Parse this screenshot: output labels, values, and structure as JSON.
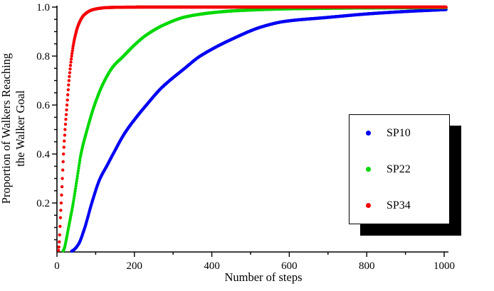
{
  "chart_data": {
    "type": "scatter",
    "title": "",
    "xlabel": "Number of steps",
    "ylabel": "Proportion of Walkers Reaching the Walker Goal",
    "ylabel_lines": [
      "Proportion of Walkers Reaching",
      "the Walker Goal"
    ],
    "xlim": [
      0,
      1010
    ],
    "ylim": [
      0,
      1.0
    ],
    "grid": false,
    "axis_color": "#000000",
    "x_axis": {
      "major_ticks": [
        0,
        200,
        400,
        600,
        800,
        1000
      ],
      "minor_ticks": [
        100,
        300,
        500,
        700,
        900
      ],
      "tick_labels": [
        "0",
        "200",
        "400",
        "600",
        "800",
        "1000"
      ]
    },
    "y_axis": {
      "major_ticks": [
        0.2,
        0.4,
        0.6,
        0.8,
        1.0
      ],
      "minor_step": 0.05,
      "tick_labels": [
        "0.2",
        "0.4",
        "0.6",
        "0.8",
        "1.0"
      ]
    },
    "legend": {
      "position": "center-right",
      "style": "white box with black drop shadow",
      "items": [
        "SP10",
        "SP22",
        "SP34"
      ]
    },
    "series": [
      {
        "name": "SP10",
        "color": "#0000f2",
        "marker": "dot",
        "points": [
          [
            0,
            0
          ],
          [
            30,
            0
          ],
          [
            40,
            0.005
          ],
          [
            55,
            0.03
          ],
          [
            70,
            0.09
          ],
          [
            90,
            0.2
          ],
          [
            110,
            0.295
          ],
          [
            130,
            0.355
          ],
          [
            145,
            0.4
          ],
          [
            175,
            0.485
          ],
          [
            205,
            0.55
          ],
          [
            231,
            0.6
          ],
          [
            270,
            0.67
          ],
          [
            330,
            0.75
          ],
          [
            370,
            0.8
          ],
          [
            460,
            0.875
          ],
          [
            530,
            0.92
          ],
          [
            590,
            0.942
          ],
          [
            700,
            0.958
          ],
          [
            800,
            0.972
          ],
          [
            900,
            0.982
          ],
          [
            1005,
            0.99
          ]
        ]
      },
      {
        "name": "SP22",
        "color": "#00d800",
        "marker": "dot",
        "points": [
          [
            0,
            0
          ],
          [
            12,
            0
          ],
          [
            18,
            0.01
          ],
          [
            24,
            0.05
          ],
          [
            30,
            0.1
          ],
          [
            42,
            0.2
          ],
          [
            52,
            0.3
          ],
          [
            62,
            0.4
          ],
          [
            78,
            0.5
          ],
          [
            97,
            0.6
          ],
          [
            120,
            0.69
          ],
          [
            145,
            0.757
          ],
          [
            172,
            0.8
          ],
          [
            200,
            0.845
          ],
          [
            230,
            0.885
          ],
          [
            277,
            0.928
          ],
          [
            332,
            0.96
          ],
          [
            400,
            0.977
          ],
          [
            460,
            0.985
          ],
          [
            600,
            0.993
          ],
          [
            800,
            0.9965
          ],
          [
            1005,
            0.998
          ]
        ]
      },
      {
        "name": "SP34",
        "color": "#f50000",
        "marker": "dot",
        "points": [
          [
            0,
            0
          ],
          [
            3,
            0
          ],
          [
            5,
            0.02
          ],
          [
            7,
            0.07
          ],
          [
            9,
            0.14
          ],
          [
            11,
            0.2
          ],
          [
            14,
            0.3
          ],
          [
            17,
            0.4
          ],
          [
            21,
            0.5
          ],
          [
            26,
            0.6
          ],
          [
            31,
            0.7
          ],
          [
            38,
            0.8
          ],
          [
            46,
            0.875
          ],
          [
            56,
            0.93
          ],
          [
            70,
            0.968
          ],
          [
            90,
            0.988
          ],
          [
            110,
            0.995
          ],
          [
            130,
            0.998
          ],
          [
            170,
            0.9995
          ],
          [
            240,
            1.0
          ],
          [
            1005,
            1.0
          ]
        ]
      }
    ]
  }
}
